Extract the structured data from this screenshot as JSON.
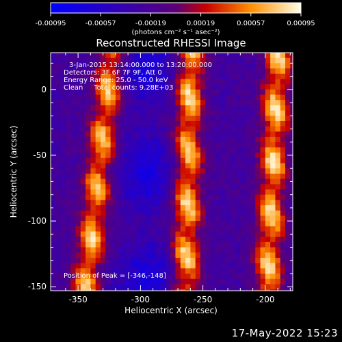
{
  "chart_data": {
    "type": "heatmap",
    "title": "Reconstructed RHESSI Image",
    "xlabel": "Heliocentric X (arcsec)",
    "ylabel": "Heliocentric Y (arcsec)",
    "xlim": [
      -372,
      -178
    ],
    "ylim": [
      -153,
      28
    ],
    "xticks": [
      -350,
      -300,
      -250,
      -200
    ],
    "yticks": [
      0,
      -50,
      -100,
      -150
    ],
    "colorbar": {
      "label": "(photons cm⁻² s⁻¹ asec⁻²)",
      "range": [
        -0.00095,
        0.00095
      ],
      "ticks": [
        "-0.00095",
        "-0.00057",
        "-0.00019",
        "0.00019",
        "0.00057",
        "0.00095"
      ]
    },
    "annotations": [
      "3-Jan-2015 13:14:00.000 to 13:20:00.000",
      "Detectors: 3F 6F 7F 9F, Att 0",
      "Energy Range: 25.0 - 50.0 keV",
      "Clean     Total counts: 9.28E+03"
    ],
    "peak_label": "Position of Peak = [-346,-148]",
    "peak": [
      -346,
      -148
    ],
    "bands": [
      {
        "x_at_bottom": -346,
        "x_at_top": -325,
        "peak": 0.00085
      },
      {
        "x_at_bottom": -266,
        "x_at_top": -262,
        "peak": 0.00092
      },
      {
        "x_at_bottom": -200,
        "x_at_top": -192,
        "peak": 0.0009
      }
    ],
    "trough_x": -297
  },
  "timestamp": "17-May-2022 15:23"
}
